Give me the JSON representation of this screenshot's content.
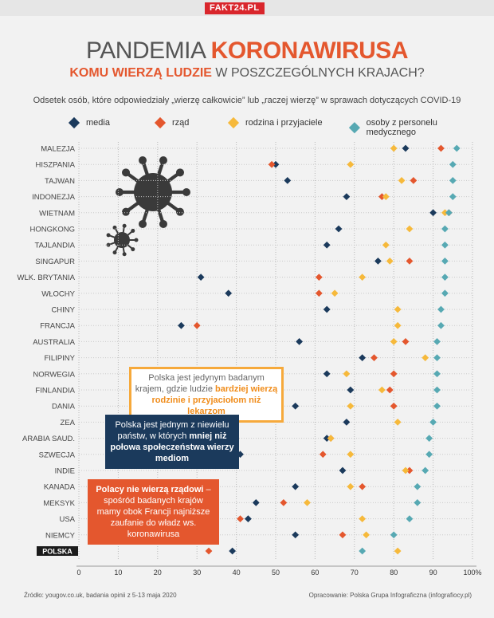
{
  "brand": "FAKT24.PL",
  "title": {
    "part1": "PANDEMIA",
    "part2": "KORONAWIRUSA"
  },
  "subtitle": {
    "part1": "KOMU WIERZĄ LUDZIE",
    "part2": "W POSZCZEGÓLNYCH KRAJACH?"
  },
  "note": "Odsetek osób, które odpowiedziały „wierzę całkowicie” lub „raczej wierzę” w sprawach dotyczących COVID-19",
  "colors": {
    "media": "#1b3a5c",
    "rzad": "#e4572e",
    "rodzina": "#f6b93b",
    "medyczny": "#57a9b3"
  },
  "chart_data": {
    "type": "scatter",
    "categories": [
      "MALEZJA",
      "HISZPANIA",
      "TAJWAN",
      "INDONEZJA",
      "WIETNAM",
      "HONGKONG",
      "TAJLANDIA",
      "SINGAPUR",
      "WLK. BRYTANIA",
      "WŁOCHY",
      "CHINY",
      "FRANCJA",
      "AUSTRALIA",
      "FILIPINY",
      "NORWEGIA",
      "FINLANDIA",
      "DANIA",
      "ZEA",
      "ARABIA SAUD.",
      "SZWECJA",
      "INDIE",
      "KANADA",
      "MEKSYK",
      "USA",
      "NIEMCY",
      "POLSKA"
    ],
    "series": [
      {
        "name": "media",
        "values": [
          83,
          50,
          53,
          68,
          90,
          66,
          63,
          76,
          31,
          38,
          63,
          26,
          56,
          72,
          63,
          69,
          55,
          68,
          63,
          41,
          67,
          55,
          45,
          43,
          55,
          39
        ]
      },
      {
        "name": "rząd",
        "values": [
          92,
          49,
          85,
          77,
          94,
          null,
          null,
          84,
          61,
          61,
          null,
          30,
          83,
          75,
          80,
          79,
          80,
          null,
          64,
          62,
          84,
          72,
          52,
          41,
          67,
          33
        ]
      },
      {
        "name": "rodzina i przyjaciele",
        "values": [
          80,
          69,
          82,
          78,
          93,
          84,
          78,
          79,
          72,
          65,
          81,
          81,
          80,
          88,
          68,
          77,
          69,
          81,
          64,
          69,
          83,
          69,
          58,
          72,
          73,
          81
        ]
      },
      {
        "name": "osoby z personelu medycznego",
        "values": [
          96,
          95,
          95,
          95,
          94,
          93,
          93,
          93,
          93,
          93,
          92,
          92,
          91,
          91,
          91,
          91,
          91,
          90,
          89,
          89,
          88,
          86,
          86,
          84,
          80,
          72
        ]
      }
    ],
    "xlim": [
      0,
      100
    ],
    "xticks": [
      "0",
      "10",
      "20",
      "30",
      "40",
      "50",
      "60",
      "70",
      "80",
      "90",
      "100%"
    ],
    "highlight_row": "POLSKA"
  },
  "callouts": {
    "c1_text1": "Polska jest jedynym badanym krajem, gdzie ludzie",
    "c1_bold": "bardziej wierzą rodzinie i przyjaciołom niż lekarzom",
    "c2_text1": "Polska jest jednym z niewielu państw, w których",
    "c2_bold": "mniej niż połowa społeczeństwa wierzy mediom",
    "c3_bold": "Polacy nie wierzą rządowi",
    "c3_text": "– spośród badanych krajów mamy obok Francji najniższe zaufanie do władz ws. koronawirusa"
  },
  "footer": {
    "source": "Źródło: yougov.co.uk, badania opinii z 5-13 maja 2020",
    "author": "Opracowanie: Polska Grupa Infograficzna (infografiocy.pl)"
  }
}
